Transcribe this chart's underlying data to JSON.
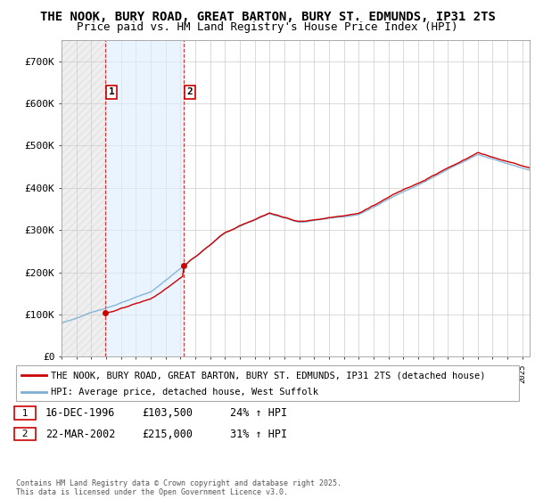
{
  "title1": "THE NOOK, BURY ROAD, GREAT BARTON, BURY ST. EDMUNDS, IP31 2TS",
  "title2": "Price paid vs. HM Land Registry's House Price Index (HPI)",
  "ylim": [
    0,
    750000
  ],
  "yticks": [
    0,
    100000,
    200000,
    300000,
    400000,
    500000,
    600000,
    700000
  ],
  "ytick_labels": [
    "£0",
    "£100K",
    "£200K",
    "£300K",
    "£400K",
    "£500K",
    "£600K",
    "£700K"
  ],
  "hpi_color": "#7bafd4",
  "price_color": "#cc0000",
  "purchase1_date": 1996.96,
  "purchase1_price": 103500,
  "purchase1_label": "1",
  "purchase2_date": 2002.22,
  "purchase2_price": 215000,
  "purchase2_label": "2",
  "legend_line1": "THE NOOK, BURY ROAD, GREAT BARTON, BURY ST. EDMUNDS, IP31 2TS (detached house)",
  "legend_line2": "HPI: Average price, detached house, West Suffolk",
  "annotation1_date": "16-DEC-1996",
  "annotation1_price": "£103,500",
  "annotation1_hpi": "24% ↑ HPI",
  "annotation2_date": "22-MAR-2002",
  "annotation2_price": "£215,000",
  "annotation2_hpi": "31% ↑ HPI",
  "footer": "Contains HM Land Registry data © Crown copyright and database right 2025.\nThis data is licensed under the Open Government Licence v3.0.",
  "xmin": 1994.0,
  "xmax": 2025.5,
  "shade1_start": 1994.0,
  "shade1_end": 1996.96,
  "shade2_start": 1996.96,
  "shade2_end": 2002.22,
  "grid_color": "#cccccc",
  "title_fontsize": 10,
  "subtitle_fontsize": 9
}
